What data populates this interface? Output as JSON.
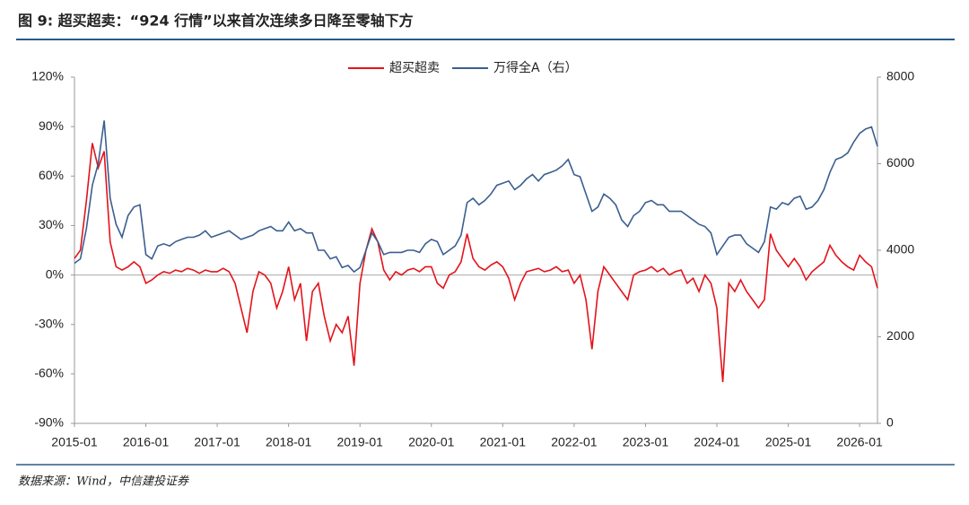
{
  "title": "图 9: 超买超卖：“924 行情”以来首次连续多日降至零轴下方",
  "source": "数据来源：Wind，中信建投证券",
  "chart_data": {
    "type": "line",
    "x": [
      "2015-01",
      "2015-02",
      "2015-03",
      "2015-04",
      "2015-05",
      "2015-06",
      "2015-07",
      "2015-08",
      "2015-09",
      "2015-10",
      "2015-11",
      "2015-12",
      "2016-01",
      "2016-02",
      "2016-03",
      "2016-04",
      "2016-05",
      "2016-06",
      "2016-07",
      "2016-08",
      "2016-09",
      "2016-10",
      "2016-11",
      "2016-12",
      "2017-01",
      "2017-02",
      "2017-03",
      "2017-04",
      "2017-05",
      "2017-06",
      "2017-07",
      "2017-08",
      "2017-09",
      "2017-10",
      "2017-11",
      "2017-12",
      "2018-01",
      "2018-02",
      "2018-03",
      "2018-04",
      "2018-05",
      "2018-06",
      "2018-07",
      "2018-08",
      "2018-09",
      "2018-10",
      "2018-11",
      "2018-12",
      "2019-01",
      "2019-02",
      "2019-03",
      "2019-04",
      "2019-05",
      "2019-06",
      "2019-07",
      "2019-08",
      "2019-09",
      "2019-10",
      "2019-11",
      "2019-12",
      "2020-01",
      "2020-02",
      "2020-03",
      "2020-04",
      "2020-05",
      "2020-06",
      "2020-07",
      "2020-08",
      "2020-09",
      "2020-10",
      "2020-11",
      "2020-12",
      "2021-01",
      "2021-02",
      "2021-03",
      "2021-04",
      "2021-05",
      "2021-06",
      "2021-07",
      "2021-08",
      "2021-09",
      "2021-10",
      "2021-11",
      "2021-12",
      "2022-01",
      "2022-02",
      "2022-03",
      "2022-04",
      "2022-05",
      "2022-06",
      "2022-07",
      "2022-08",
      "2022-09",
      "2022-10",
      "2022-11",
      "2022-12",
      "2023-01",
      "2023-02",
      "2023-03",
      "2023-04",
      "2023-05",
      "2023-06",
      "2023-07",
      "2023-08",
      "2023-09",
      "2023-10",
      "2023-11",
      "2023-12",
      "2024-01",
      "2024-02",
      "2024-03",
      "2024-04",
      "2024-05",
      "2024-06",
      "2024-07",
      "2024-08",
      "2024-09",
      "2024-10",
      "2024-11",
      "2024-12",
      "2025-01",
      "2025-02",
      "2025-03",
      "2025-04",
      "2025-05",
      "2025-06",
      "2025-07",
      "2025-08",
      "2025-09",
      "2025-10",
      "2025-11",
      "2025-12",
      "2026-01",
      "2026-02",
      "2026-03",
      "2026-04"
    ],
    "xticks": [
      "2015-01",
      "2016-01",
      "2017-01",
      "2018-01",
      "2019-01",
      "2020-01",
      "2021-01",
      "2022-01",
      "2023-01",
      "2024-01",
      "2025-01",
      "2026-01"
    ],
    "ylim": [
      -90,
      120
    ],
    "yticks": [
      {
        "value": -90,
        "label": "-90%"
      },
      {
        "value": -60,
        "label": "-60%"
      },
      {
        "value": -30,
        "label": "-30%"
      },
      {
        "value": 0,
        "label": "0%"
      },
      {
        "value": 30,
        "label": "30%"
      },
      {
        "value": 60,
        "label": "60%"
      },
      {
        "value": 90,
        "label": "90%"
      },
      {
        "value": 120,
        "label": "120%"
      }
    ],
    "y2lim": [
      0,
      8000
    ],
    "y2ticks": [
      0,
      2000,
      4000,
      6000,
      8000
    ],
    "legend": "top",
    "series": [
      {
        "name": "超买超卖",
        "color": "#e3131b",
        "values": [
          10,
          15,
          45,
          80,
          65,
          75,
          20,
          5,
          3,
          5,
          8,
          5,
          -5,
          -3,
          0,
          2,
          1,
          3,
          2,
          4,
          3,
          1,
          3,
          2,
          2,
          4,
          2,
          -5,
          -20,
          -35,
          -10,
          2,
          0,
          -5,
          -20,
          -10,
          5,
          -15,
          -5,
          -40,
          -10,
          -5,
          -25,
          -40,
          -30,
          -35,
          -25,
          -55,
          -5,
          15,
          28,
          20,
          3,
          -3,
          2,
          0,
          3,
          4,
          2,
          5,
          5,
          -5,
          -8,
          0,
          2,
          8,
          25,
          10,
          5,
          3,
          6,
          8,
          5,
          -2,
          -15,
          -5,
          2,
          3,
          4,
          2,
          3,
          5,
          2,
          3,
          -5,
          0,
          -15,
          -45,
          -10,
          5,
          0,
          -5,
          -10,
          -15,
          0,
          2,
          3,
          5,
          2,
          4,
          0,
          2,
          3,
          -5,
          -2,
          -10,
          0,
          -5,
          -20,
          -65,
          -5,
          -10,
          -3,
          -10,
          -15,
          -20,
          -15,
          25,
          15,
          10,
          5,
          10,
          5,
          -3,
          2,
          5,
          8,
          18,
          12,
          8,
          5,
          3,
          12,
          8,
          5,
          -8
        ]
      },
      {
        "name": "万得全A（右）",
        "color": "#3a5f8f",
        "axis": "y2",
        "values": [
          3700,
          3800,
          4500,
          5500,
          6000,
          7000,
          5200,
          4600,
          4300,
          4800,
          5000,
          5050,
          3900,
          3800,
          4100,
          4150,
          4100,
          4200,
          4250,
          4300,
          4300,
          4350,
          4450,
          4300,
          4350,
          4400,
          4450,
          4350,
          4250,
          4300,
          4350,
          4450,
          4500,
          4550,
          4450,
          4450,
          4650,
          4450,
          4500,
          4400,
          4400,
          4000,
          4000,
          3800,
          3850,
          3600,
          3650,
          3500,
          3600,
          4000,
          4400,
          4200,
          3900,
          3950,
          3950,
          3950,
          4000,
          4000,
          3950,
          4150,
          4250,
          4200,
          3900,
          4000,
          4100,
          4350,
          5100,
          5200,
          5050,
          5150,
          5300,
          5500,
          5550,
          5600,
          5400,
          5500,
          5650,
          5750,
          5600,
          5750,
          5800,
          5850,
          5950,
          6100,
          5750,
          5700,
          5300,
          4900,
          5000,
          5300,
          5200,
          5050,
          4700,
          4550,
          4800,
          4900,
          5100,
          5150,
          5050,
          5050,
          4900,
          4900,
          4900,
          4800,
          4700,
          4600,
          4550,
          4400,
          3900,
          4100,
          4300,
          4350,
          4350,
          4150,
          4050,
          3950,
          4200,
          5000,
          4950,
          5100,
          5050,
          5200,
          5250,
          4950,
          5000,
          5150,
          5400,
          5800,
          6100,
          6150,
          6250,
          6500,
          6700,
          6800,
          6850,
          6400
        ]
      }
    ]
  }
}
